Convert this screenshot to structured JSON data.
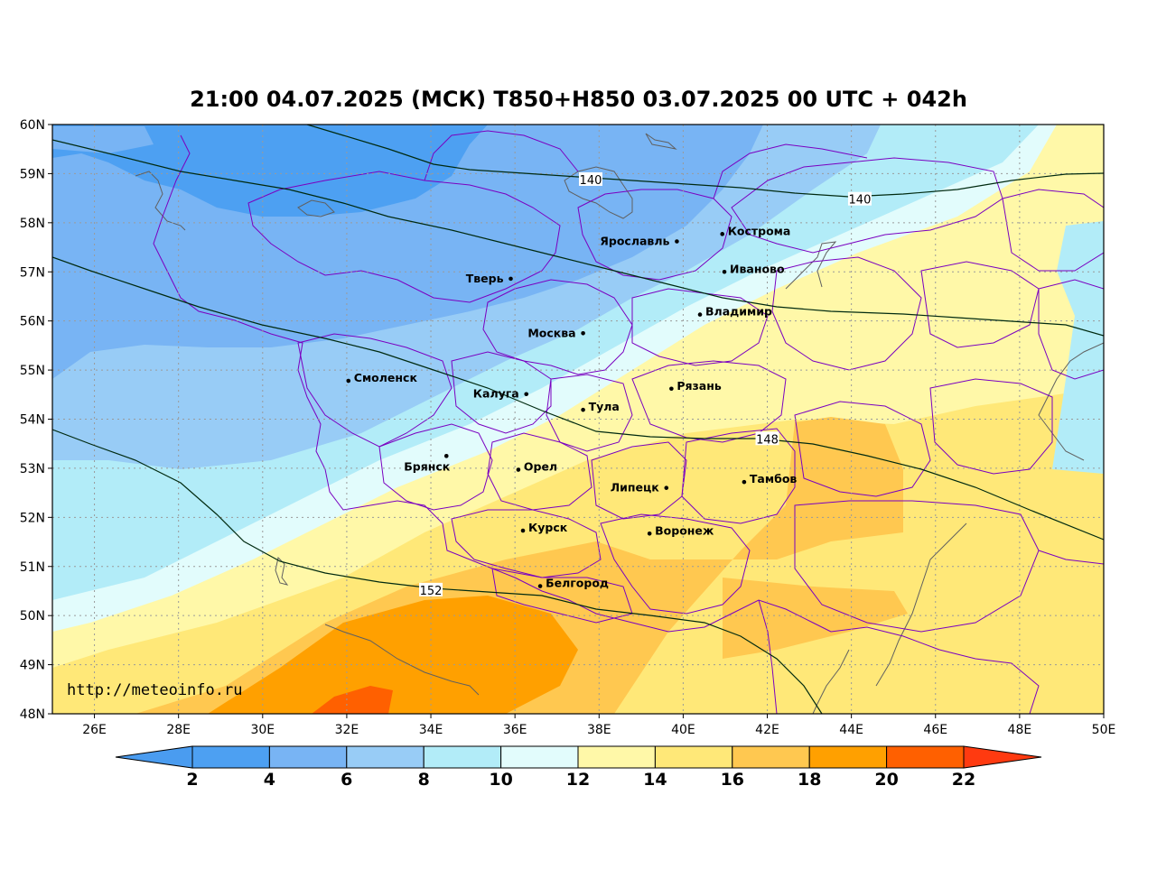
{
  "title": "21:00 04.07.2025 (МСК) T850+H850 03.07.2025 00 UTC + 042h",
  "watermark": "http://meteoinfo.ru",
  "axes": {
    "lon_range": [
      25,
      50
    ],
    "lat_range": [
      48,
      60
    ],
    "lon_ticks": [
      "26E",
      "28E",
      "30E",
      "32E",
      "34E",
      "36E",
      "38E",
      "40E",
      "42E",
      "44E",
      "46E",
      "48E",
      "50E"
    ],
    "lat_ticks": [
      "60N",
      "59N",
      "58N",
      "57N",
      "56N",
      "55N",
      "54N",
      "53N",
      "52N",
      "51N",
      "50N",
      "49N",
      "48N"
    ]
  },
  "cities": [
    {
      "name": "Ярославль",
      "lon": 39.85,
      "lat": 57.62,
      "anchor": "left"
    },
    {
      "name": "Кострома",
      "lon": 40.93,
      "lat": 57.77,
      "anchor": "right"
    },
    {
      "name": "Иваново",
      "lon": 40.98,
      "lat": 57.0,
      "anchor": "right"
    },
    {
      "name": "Тверь",
      "lon": 35.9,
      "lat": 56.86,
      "anchor": "left"
    },
    {
      "name": "Владимир",
      "lon": 40.4,
      "lat": 56.13,
      "anchor": "right"
    },
    {
      "name": "Москва",
      "lon": 37.62,
      "lat": 55.75,
      "anchor": "left"
    },
    {
      "name": "Смоленск",
      "lon": 32.04,
      "lat": 54.78,
      "anchor": "right"
    },
    {
      "name": "Калуга",
      "lon": 36.27,
      "lat": 54.51,
      "anchor": "left"
    },
    {
      "name": "Рязань",
      "lon": 39.72,
      "lat": 54.62,
      "anchor": "right"
    },
    {
      "name": "Тула",
      "lon": 37.62,
      "lat": 54.19,
      "anchor": "right"
    },
    {
      "name": "Брянск",
      "lon": 34.37,
      "lat": 53.25,
      "anchor": "below-left"
    },
    {
      "name": "Орел",
      "lon": 36.08,
      "lat": 52.97,
      "anchor": "right"
    },
    {
      "name": "Липецк",
      "lon": 39.6,
      "lat": 52.6,
      "anchor": "left"
    },
    {
      "name": "Тамбов",
      "lon": 41.45,
      "lat": 52.72,
      "anchor": "right"
    },
    {
      "name": "Курск",
      "lon": 36.19,
      "lat": 51.73,
      "anchor": "right"
    },
    {
      "name": "Воронеж",
      "lon": 39.2,
      "lat": 51.67,
      "anchor": "right"
    },
    {
      "name": "Белгород",
      "lon": 36.6,
      "lat": 50.6,
      "anchor": "right"
    }
  ],
  "contour_labels": [
    {
      "value": "140",
      "lon": 37.8,
      "lat": 58.88
    },
    {
      "value": "140",
      "lon": 44.2,
      "lat": 58.48
    },
    {
      "value": "148",
      "lon": 42.0,
      "lat": 53.6
    },
    {
      "value": "152",
      "lon": 34.0,
      "lat": 50.52
    }
  ],
  "colorbar": {
    "labels": [
      "2",
      "4",
      "6",
      "8",
      "10",
      "12",
      "14",
      "16",
      "18",
      "20",
      "22"
    ],
    "colors": [
      "#4a9cf0",
      "#4da0f2",
      "#78b4f4",
      "#98ccf6",
      "#b2ecf8",
      "#e2fcfc",
      "#fff8a8",
      "#ffe878",
      "#ffc850",
      "#ffa000",
      "#ff6000",
      "#ff3010"
    ],
    "under_color": "#4a9cf0",
    "over_color": "#ff3a10"
  },
  "colors": {
    "contour": "#002a10",
    "border": "#7a00c0",
    "water": "#606060",
    "grid": "#9a9a9a"
  }
}
